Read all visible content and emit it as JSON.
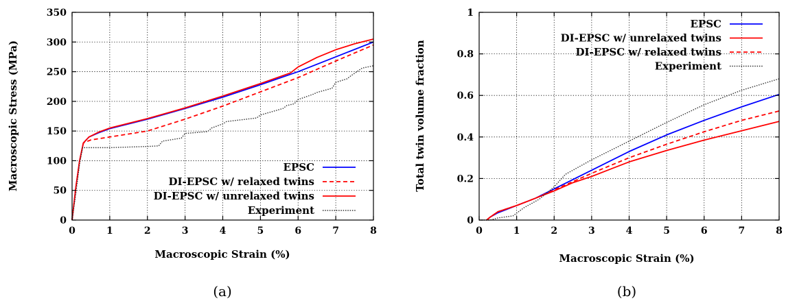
{
  "chart_data": [
    {
      "type": "line",
      "caption": "(a)",
      "xlabel": "Macroscopic Strain (%)",
      "ylabel": "Macroscopic Stress (MPa)",
      "xlim": [
        0,
        8
      ],
      "ylim": [
        0,
        350
      ],
      "xticks": [
        0,
        1,
        2,
        3,
        4,
        5,
        6,
        7,
        8
      ],
      "yticks": [
        0,
        50,
        100,
        150,
        200,
        250,
        300,
        350
      ],
      "grid": true,
      "legend_position": "bottom-right",
      "series": [
        {
          "name": "EPSC",
          "color": "#0000ff",
          "dash": "solid",
          "x": [
            0,
            0.1,
            0.2,
            0.3,
            0.45,
            0.7,
            1,
            1.5,
            2,
            3,
            4,
            5,
            6,
            7,
            8
          ],
          "y": [
            0,
            55,
            100,
            130,
            140,
            147,
            154,
            162,
            170,
            188,
            207,
            228,
            250,
            275,
            300
          ]
        },
        {
          "name": "DI-EPSC w/ relaxed twins",
          "color": "#ff0000",
          "dash": "dashed",
          "x": [
            0,
            0.1,
            0.2,
            0.3,
            0.5,
            1,
            1.5,
            2,
            3,
            4,
            5,
            6,
            7,
            8
          ],
          "y": [
            0,
            55,
            100,
            130,
            135,
            140,
            145,
            150,
            170,
            192,
            216,
            240,
            268,
            295
          ]
        },
        {
          "name": "DI-EPSC w/ unrelaxed twins",
          "color": "#ff0000",
          "dash": "solid",
          "x": [
            0,
            0.1,
            0.2,
            0.3,
            0.45,
            0.7,
            1,
            1.5,
            2,
            3,
            4,
            5,
            5.8,
            6,
            6.5,
            7,
            7.5,
            8
          ],
          "y": [
            0,
            55,
            100,
            130,
            140,
            148,
            155,
            163,
            171,
            189,
            209,
            230,
            248,
            258,
            274,
            287,
            297,
            305
          ]
        },
        {
          "name": "Experiment",
          "color": "#333333",
          "dash": "dotted",
          "x": [
            0,
            0.1,
            0.2,
            0.28,
            0.5,
            1,
            1.5,
            2,
            2.3,
            2.4,
            2.9,
            3.0,
            3.6,
            3.7,
            4.0,
            4.1,
            4.9,
            5.0,
            5.6,
            5.7,
            5.9,
            6.0,
            6.4,
            6.5,
            6.9,
            7.0,
            7.3,
            7.4,
            7.7,
            8
          ],
          "y": [
            0,
            45,
            95,
            122,
            122,
            122,
            123,
            124,
            125,
            133,
            138,
            146,
            149,
            155,
            162,
            166,
            172,
            177,
            188,
            193,
            196,
            203,
            212,
            215,
            222,
            232,
            238,
            243,
            256,
            260
          ]
        }
      ]
    },
    {
      "type": "line",
      "caption": "(b)",
      "xlabel": "Macroscopic Strain (%)",
      "ylabel": "Total twin volume fraction",
      "xlim": [
        0,
        8
      ],
      "ylim": [
        0,
        1
      ],
      "xticks": [
        0,
        1,
        2,
        3,
        4,
        5,
        6,
        7,
        8
      ],
      "yticks": [
        0,
        0.2,
        0.4,
        0.6,
        0.8,
        1
      ],
      "grid": true,
      "legend_position": "top-right",
      "series": [
        {
          "name": "EPSC",
          "color": "#0000ff",
          "dash": "solid",
          "x": [
            0.2,
            0.3,
            0.5,
            1,
            1.5,
            2,
            2.5,
            3,
            4,
            5,
            6,
            7,
            8
          ],
          "y": [
            0,
            0.015,
            0.035,
            0.07,
            0.105,
            0.15,
            0.195,
            0.24,
            0.33,
            0.41,
            0.48,
            0.545,
            0.605
          ]
        },
        {
          "name": "DI-EPSC w/ unrelaxed twins",
          "color": "#ff0000",
          "dash": "solid",
          "x": [
            0.2,
            0.3,
            0.5,
            1,
            1.5,
            2,
            2.5,
            3,
            4,
            5,
            6,
            7,
            8
          ],
          "y": [
            0,
            0.015,
            0.04,
            0.07,
            0.105,
            0.14,
            0.18,
            0.21,
            0.28,
            0.335,
            0.385,
            0.43,
            0.475
          ]
        },
        {
          "name": "DI-EPSC w/ relaxed twins",
          "color": "#ff0000",
          "dash": "dashed",
          "x": [
            0.2,
            0.3,
            0.5,
            1,
            1.5,
            2,
            2.5,
            3,
            4,
            5,
            6,
            7,
            8
          ],
          "y": [
            0,
            0.015,
            0.04,
            0.07,
            0.105,
            0.145,
            0.185,
            0.225,
            0.3,
            0.365,
            0.425,
            0.48,
            0.525
          ]
        },
        {
          "name": "Experiment",
          "color": "#333333",
          "dash": "dotted",
          "x": [
            0,
            0.3,
            0.5,
            0.7,
            0.9,
            1.2,
            1.6,
            2,
            2.3,
            3,
            4,
            5,
            6,
            7,
            8
          ],
          "y": [
            0,
            0,
            0.01,
            0.015,
            0.02,
            0.06,
            0.1,
            0.16,
            0.22,
            0.29,
            0.38,
            0.47,
            0.555,
            0.625,
            0.68
          ]
        }
      ]
    }
  ]
}
